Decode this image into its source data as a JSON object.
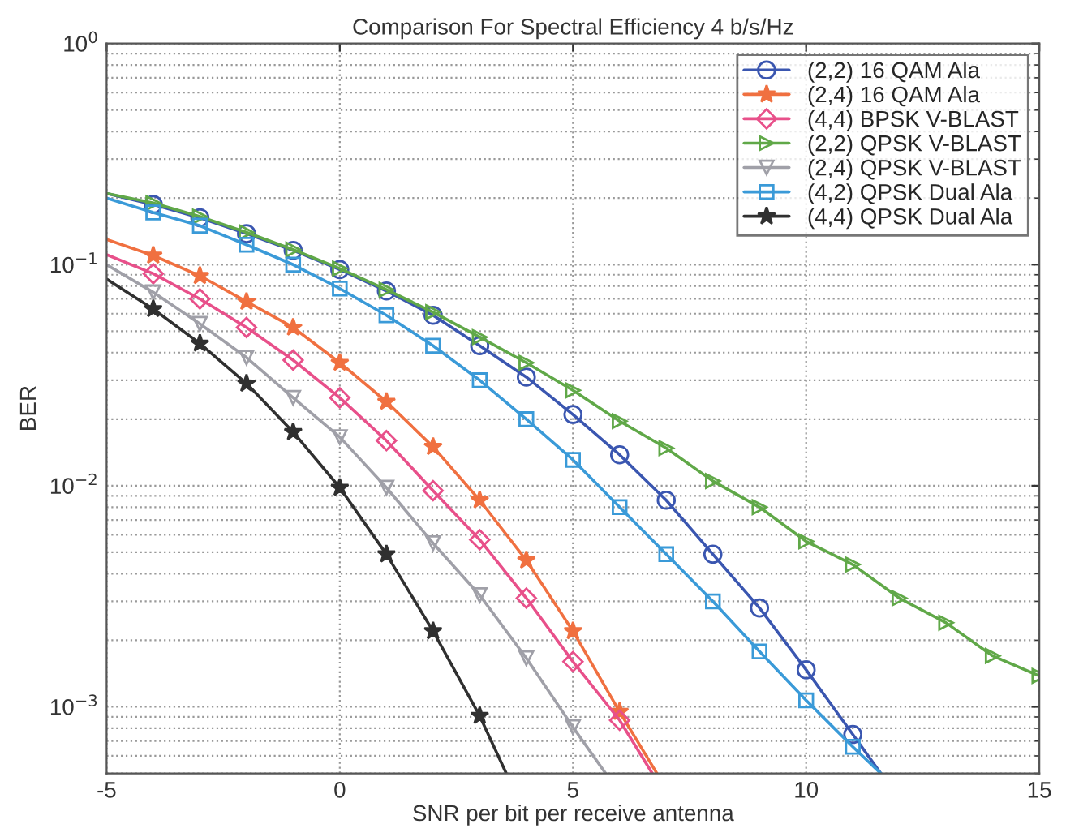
{
  "chart_data": {
    "type": "line",
    "title": "Comparison For Spectral Efficiency 4 b/s/Hz",
    "xlabel": "SNR per bit per receive antenna",
    "ylabel": "BER",
    "log": "y",
    "grid": true,
    "legend": "top right",
    "line_style": "solid",
    "xlim": [
      -5,
      15
    ],
    "xticks": [
      -5,
      0,
      5,
      10,
      15
    ],
    "ylim": [
      0.0005,
      1
    ],
    "yticks": [
      {
        "value": 1,
        "label": "10$^{0}$"
      },
      {
        "value": 0.1,
        "label": "10$^{−1}$"
      },
      {
        "value": 0.01,
        "label": "10$^{−2}$"
      },
      {
        "value": 0.001,
        "label": "10$^{−3}$"
      }
    ],
    "series": [
      {
        "name": "(2,2) 16 QAM Ala",
        "color": "#3a56b0",
        "marker": "circle",
        "x": [
          -5,
          -4,
          -3,
          -2,
          -1,
          0,
          1,
          2,
          3,
          4,
          5,
          6,
          7,
          8,
          9,
          10,
          11,
          11.6
        ],
        "values": [
          0.21,
          0.187,
          0.163,
          0.138,
          0.116,
          0.095,
          0.076,
          0.059,
          0.043,
          0.031,
          0.021,
          0.0138,
          0.0086,
          0.0049,
          0.0028,
          0.00147,
          0.00075,
          0.0005
        ]
      },
      {
        "name": "(2,4) 16 QAM Ala",
        "color": "#f07040",
        "marker": "star",
        "x": [
          -5,
          -4,
          -3,
          -2,
          -1,
          0,
          1,
          2,
          3,
          4,
          5,
          6,
          6.8
        ],
        "values": [
          0.13,
          0.11,
          0.089,
          0.068,
          0.052,
          0.036,
          0.024,
          0.015,
          0.0086,
          0.0046,
          0.0022,
          0.00095,
          0.0005
        ]
      },
      {
        "name": "(4,4) BPSK V-BLAST",
        "color": "#e8508a",
        "marker": "diamond",
        "x": [
          -5,
          -4,
          -3,
          -2,
          -1,
          0,
          1,
          2,
          3,
          4,
          5,
          6,
          6.7
        ],
        "values": [
          0.111,
          0.091,
          0.07,
          0.052,
          0.037,
          0.025,
          0.016,
          0.0095,
          0.0057,
          0.0031,
          0.0016,
          0.00087,
          0.0005
        ]
      },
      {
        "name": "(2,2) QPSK V-BLAST",
        "color": "#60a848",
        "marker": "triangle-right",
        "x": [
          -5,
          -4,
          -3,
          -2,
          -1,
          0,
          1,
          2,
          3,
          4,
          5,
          6,
          7,
          8,
          9,
          10,
          11,
          12,
          13,
          14,
          15
        ],
        "values": [
          0.21,
          0.19,
          0.165,
          0.14,
          0.117,
          0.096,
          0.077,
          0.061,
          0.047,
          0.036,
          0.027,
          0.0196,
          0.0148,
          0.0105,
          0.008,
          0.0056,
          0.0044,
          0.0031,
          0.0024,
          0.0017,
          0.00138
        ]
      },
      {
        "name": "(2,4) QPSK V-BLAST",
        "color": "#a0a0a8",
        "marker": "triangle-down",
        "x": [
          -5,
          -4,
          -3,
          -2,
          -1,
          0,
          1,
          2,
          3,
          4,
          5,
          5.7
        ],
        "values": [
          0.1,
          0.075,
          0.054,
          0.038,
          0.025,
          0.0166,
          0.0098,
          0.0055,
          0.0032,
          0.00166,
          0.00081,
          0.0005
        ]
      },
      {
        "name": "(4,2) QPSK Dual Ala",
        "color": "#3a9ad8",
        "marker": "square",
        "x": [
          -5,
          -4,
          -3,
          -2,
          -1,
          0,
          1,
          2,
          3,
          4,
          5,
          6,
          7,
          8,
          9,
          10,
          11,
          11.6
        ],
        "values": [
          0.2,
          0.172,
          0.15,
          0.123,
          0.1,
          0.078,
          0.059,
          0.043,
          0.03,
          0.02,
          0.0131,
          0.008,
          0.0049,
          0.003,
          0.00178,
          0.00107,
          0.00066,
          0.0005
        ]
      },
      {
        "name": "(4,4) QPSK Dual Ala",
        "color": "#303030",
        "marker": "star",
        "x": [
          -5,
          -4,
          -3,
          -2,
          -1,
          0,
          1,
          2,
          3,
          3.57
        ],
        "values": [
          0.086,
          0.063,
          0.044,
          0.029,
          0.0175,
          0.0098,
          0.0049,
          0.0022,
          0.00091,
          0.0005
        ]
      }
    ]
  }
}
